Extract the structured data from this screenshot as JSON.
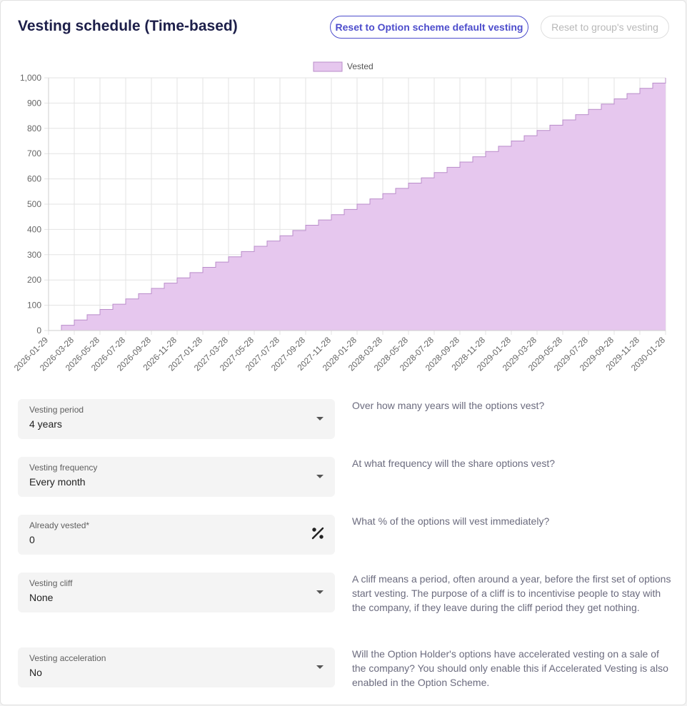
{
  "header": {
    "title": "Vesting schedule (Time-based)",
    "reset_scheme_label": "Reset to Option scheme default vesting",
    "reset_group_label": "Reset to group's vesting"
  },
  "chart_data": {
    "type": "area",
    "step": true,
    "legend": [
      {
        "label": "Vested",
        "color": "#e6c7ee",
        "border": "#b98cc9"
      }
    ],
    "legend_position": "top-center",
    "grid": true,
    "ylim": [
      0,
      1000
    ],
    "yticks": [
      "0",
      "100",
      "200",
      "300",
      "400",
      "500",
      "600",
      "700",
      "800",
      "900",
      "1,000"
    ],
    "xticks": [
      "2026-01-29",
      "2026-03-28",
      "2026-05-28",
      "2026-07-28",
      "2026-09-28",
      "2026-11-28",
      "2027-01-28",
      "2027-03-28",
      "2027-05-28",
      "2027-07-28",
      "2027-09-28",
      "2027-11-28",
      "2028-01-28",
      "2028-03-28",
      "2028-05-28",
      "2028-07-28",
      "2028-09-28",
      "2028-11-28",
      "2029-01-28",
      "2029-03-28",
      "2029-05-28",
      "2029-07-28",
      "2029-09-28",
      "2029-11-28",
      "2030-01-28"
    ],
    "series": [
      {
        "name": "Vested",
        "color": "#e6c7ee",
        "border": "#b98cc9",
        "values": [
          0,
          20.83,
          41.67,
          62.5,
          83.33,
          104.17,
          125,
          145.83,
          166.67,
          187.5,
          208.33,
          229.17,
          250,
          270.83,
          291.67,
          312.5,
          333.33,
          354.17,
          375,
          395.83,
          416.67,
          437.5,
          458.33,
          479.17,
          500,
          520.83,
          541.67,
          562.5,
          583.33,
          604.17,
          625,
          645.83,
          666.67,
          687.5,
          708.33,
          729.17,
          750,
          770.83,
          791.67,
          812.5,
          833.33,
          854.17,
          875,
          895.83,
          916.67,
          937.5,
          958.33,
          979.17,
          1000
        ]
      }
    ]
  },
  "fields": [
    {
      "label": "Vesting period",
      "value": "4 years",
      "help": "Over how many years will the options vest?",
      "control": "select"
    },
    {
      "label": "Vesting frequency",
      "value": "Every month",
      "help": "At what frequency will the share options vest?",
      "control": "select"
    },
    {
      "label": "Already vested*",
      "value": "0",
      "help": "What % of the options will vest immediately?",
      "control": "percent"
    },
    {
      "label": "Vesting cliff",
      "value": "None",
      "help": "A cliff means a period, often around a year, before the first set of options start vesting. The purpose of a cliff is to incentivise people to stay with the company, if they leave during the cliff period they get nothing.",
      "control": "select"
    },
    {
      "label": "Vesting acceleration",
      "value": "No",
      "help": "Will the Option Holder's options have accelerated vesting on a sale of the company? You should only enable this if Accelerated Vesting is also enabled in the Option Scheme.",
      "control": "select"
    }
  ]
}
